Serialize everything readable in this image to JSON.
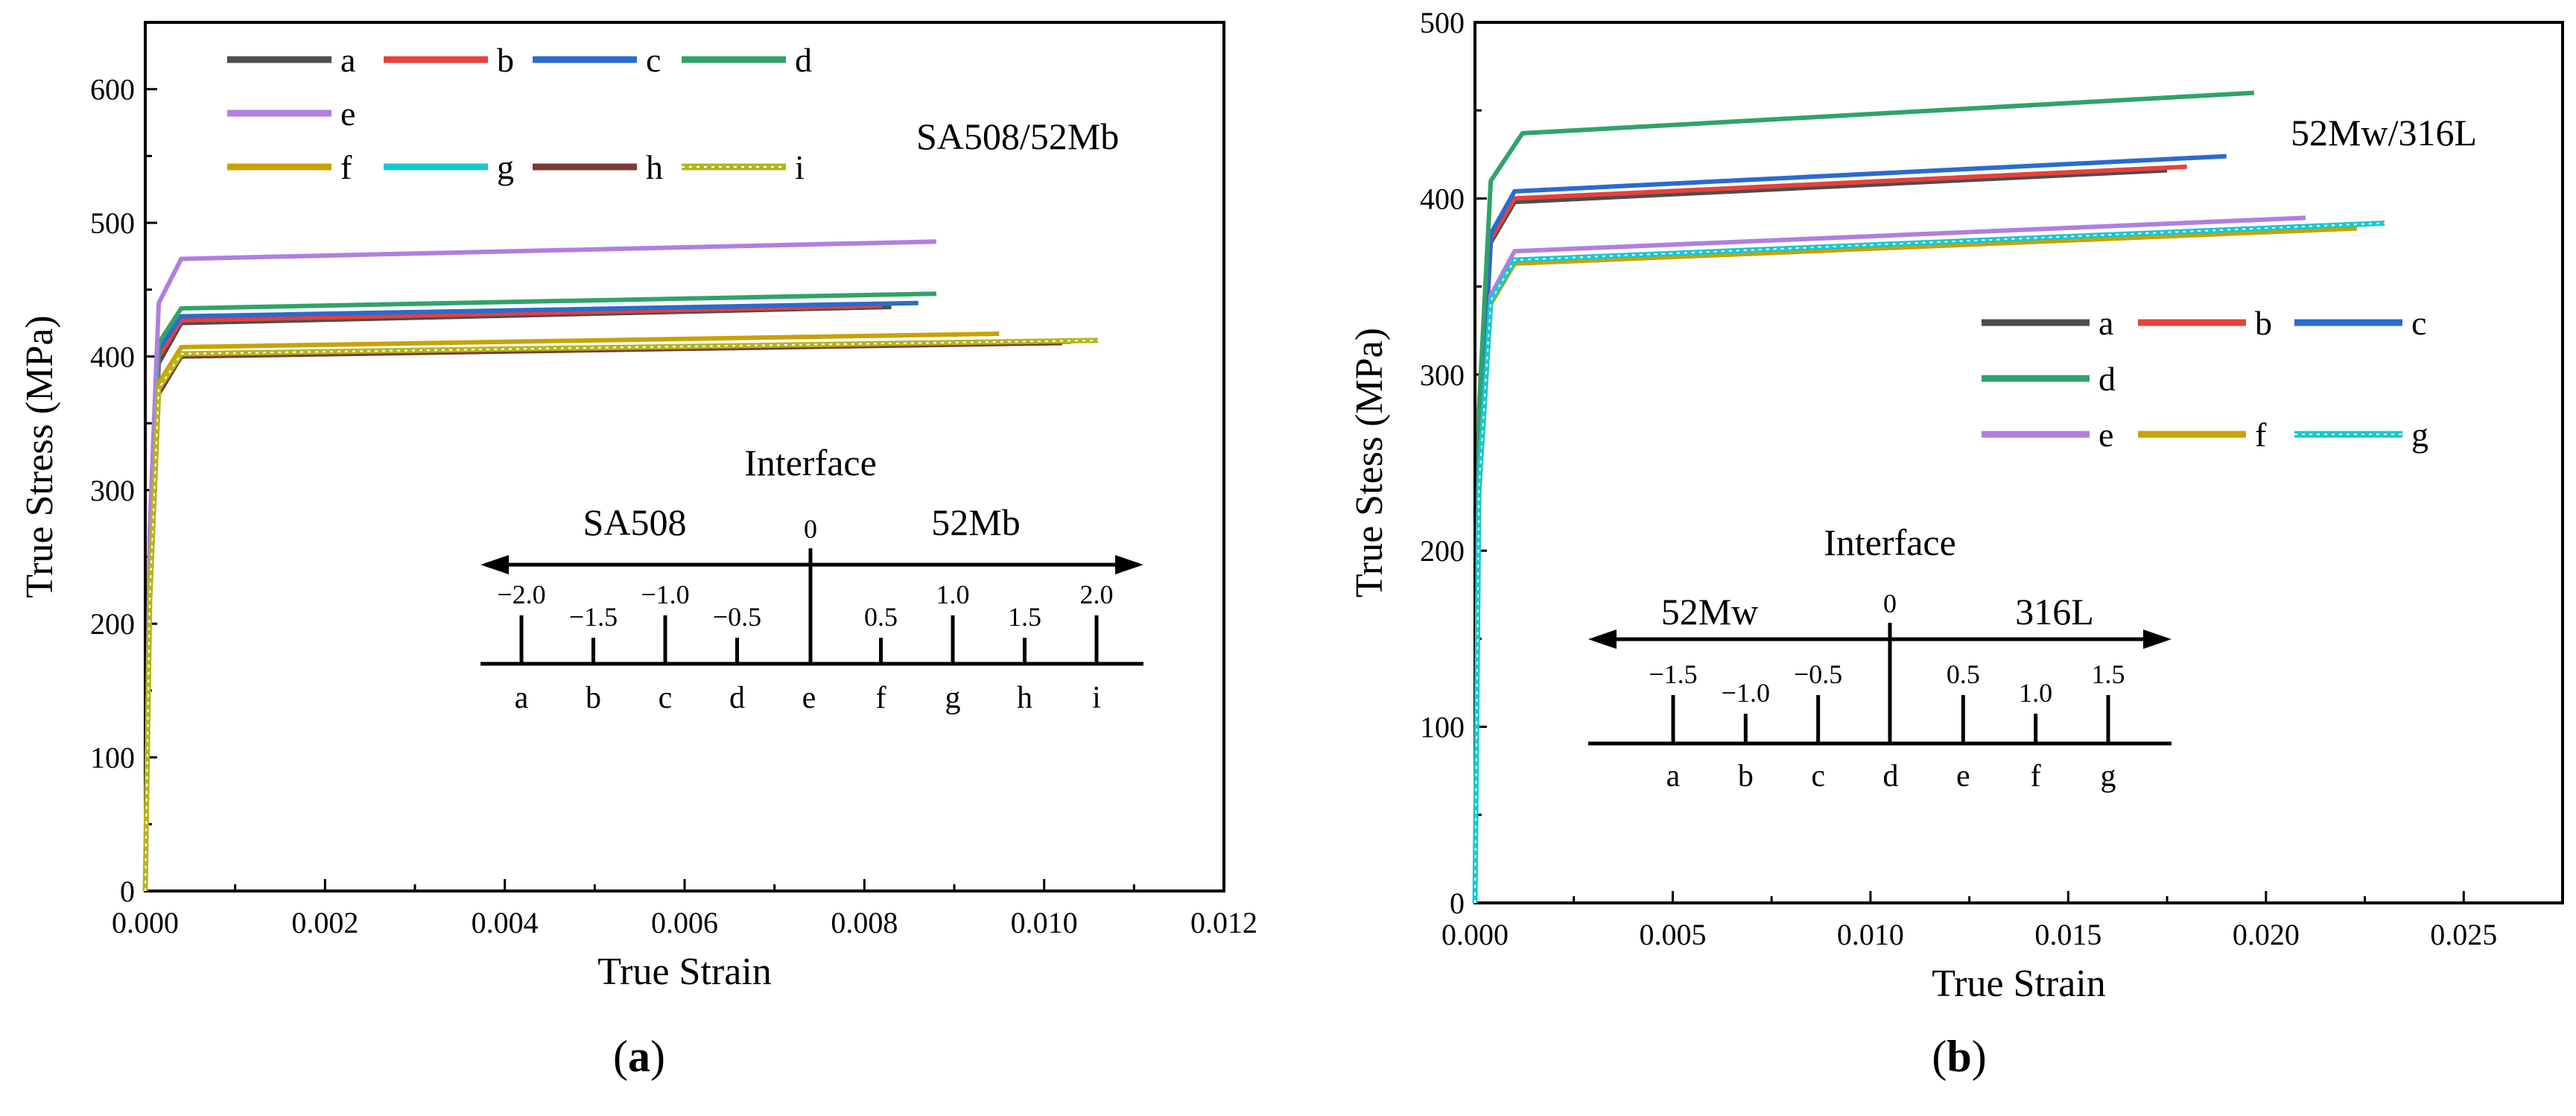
{
  "colors": {
    "a": "#4d4d4d",
    "b": "#e8403c",
    "c": "#2a6bcf",
    "d": "#2fa36b",
    "e": "#b07fdf",
    "f": "#c9a200",
    "g": "#19c8cf",
    "h": "#7a3b36",
    "i": "#b5b51c"
  },
  "chart_data": [
    {
      "type": "line",
      "panel_label": "a",
      "material_label": "SA508/52Mb",
      "xlabel": "True Strain",
      "ylabel": "True Stress (MPa)",
      "xlim": [
        0,
        0.012
      ],
      "ylim": [
        0,
        650
      ],
      "xticks": [
        0,
        0.002,
        0.004,
        0.006,
        0.008,
        0.01,
        0.012
      ],
      "xtick_labels": [
        "0.000",
        "0.002",
        "0.004",
        "0.006",
        "0.008",
        "0.010",
        "0.012"
      ],
      "yticks": [
        0,
        100,
        200,
        300,
        400,
        500,
        600
      ],
      "ytick_labels": [
        "0",
        "100",
        "200",
        "300",
        "400",
        "500",
        "600"
      ],
      "legend_rows": [
        [
          "a",
          "b",
          "c",
          "d"
        ],
        [
          "e"
        ],
        [
          "f",
          "g",
          "h",
          "i"
        ]
      ],
      "series": [
        {
          "name": "a",
          "style": "solid",
          "points": [
            [
              0,
              0
            ],
            [
              5e-05,
              230
            ],
            [
              0.00015,
              395
            ],
            [
              0.0004,
              425
            ],
            [
              0.0083,
              437
            ]
          ]
        },
        {
          "name": "b",
          "style": "solid",
          "points": [
            [
              0,
              0
            ],
            [
              5e-05,
              235
            ],
            [
              0.00015,
              400
            ],
            [
              0.0004,
              427
            ],
            [
              0.0082,
              438
            ]
          ]
        },
        {
          "name": "c",
          "style": "solid",
          "points": [
            [
              0,
              0
            ],
            [
              5e-05,
              240
            ],
            [
              0.00015,
              405
            ],
            [
              0.0004,
              430
            ],
            [
              0.0086,
              440
            ]
          ]
        },
        {
          "name": "d",
          "style": "solid",
          "points": [
            [
              0,
              0
            ],
            [
              5e-05,
              245
            ],
            [
              0.00015,
              410
            ],
            [
              0.0004,
              436
            ],
            [
              0.0088,
              447
            ]
          ]
        },
        {
          "name": "e",
          "style": "solid",
          "points": [
            [
              0,
              0
            ],
            [
              5e-05,
              270
            ],
            [
              0.00015,
              440
            ],
            [
              0.0004,
              473
            ],
            [
              0.0088,
              486
            ]
          ]
        },
        {
          "name": "f",
          "style": "solid",
          "points": [
            [
              0,
              0
            ],
            [
              5e-05,
              220
            ],
            [
              0.00015,
              380
            ],
            [
              0.0004,
              407
            ],
            [
              0.0095,
              417
            ]
          ]
        },
        {
          "name": "g",
          "style": "solid",
          "points": [
            [
              0,
              0
            ],
            [
              5e-05,
              215
            ],
            [
              0.00015,
              375
            ],
            [
              0.0004,
              402
            ],
            [
              0.0103,
              411
            ]
          ]
        },
        {
          "name": "h",
          "style": "solid",
          "points": [
            [
              0,
              0
            ],
            [
              5e-05,
              215
            ],
            [
              0.00015,
              372
            ],
            [
              0.0004,
              400
            ],
            [
              0.0102,
              410
            ]
          ]
        },
        {
          "name": "i",
          "style": "dotted",
          "points": [
            [
              0,
              0
            ],
            [
              5e-05,
              218
            ],
            [
              0.00015,
              376
            ],
            [
              0.0004,
              402
            ],
            [
              0.0106,
              412
            ]
          ]
        }
      ],
      "inset": {
        "title": "Interface",
        "left_material": "SA508",
        "right_material": "52Mb",
        "zero_label": "0",
        "positions": [
          {
            "letter": "a",
            "value": "−2.0"
          },
          {
            "letter": "b",
            "value": "−1.5"
          },
          {
            "letter": "c",
            "value": "−1.0"
          },
          {
            "letter": "d",
            "value": "−0.5"
          },
          {
            "letter": "e",
            "value": ""
          },
          {
            "letter": "f",
            "value": "0.5"
          },
          {
            "letter": "g",
            "value": "1.0"
          },
          {
            "letter": "h",
            "value": "1.5"
          },
          {
            "letter": "i",
            "value": "2.0"
          }
        ]
      }
    },
    {
      "type": "line",
      "panel_label": "b",
      "material_label": "52Mw/316L",
      "xlabel": "True Strain",
      "ylabel": "True Stess (MPa)",
      "xlim": [
        0,
        0.0275
      ],
      "ylim": [
        0,
        500
      ],
      "xticks": [
        0,
        0.005,
        0.01,
        0.015,
        0.02,
        0.025
      ],
      "xtick_labels": [
        "0.000",
        "0.005",
        "0.010",
        "0.015",
        "0.020",
        "0.025"
      ],
      "yticks": [
        0,
        100,
        200,
        300,
        400,
        500
      ],
      "ytick_labels": [
        "0",
        "100",
        "200",
        "300",
        "400",
        "500"
      ],
      "legend_rows": [
        [
          "a",
          "b",
          "c"
        ],
        [
          "d"
        ],
        [
          "e",
          "f",
          "g"
        ]
      ],
      "series": [
        {
          "name": "a",
          "style": "solid",
          "points": [
            [
              0,
              0
            ],
            [
              0.0001,
              250
            ],
            [
              0.0004,
              375
            ],
            [
              0.001,
              398
            ],
            [
              0.0175,
              416
            ]
          ]
        },
        {
          "name": "b",
          "style": "solid",
          "points": [
            [
              0,
              0
            ],
            [
              0.0001,
              252
            ],
            [
              0.0004,
              377
            ],
            [
              0.001,
              400
            ],
            [
              0.018,
              418
            ]
          ]
        },
        {
          "name": "c",
          "style": "solid",
          "points": [
            [
              0,
              0
            ],
            [
              0.0001,
              255
            ],
            [
              0.0004,
              380
            ],
            [
              0.001,
              404
            ],
            [
              0.019,
              424
            ]
          ]
        },
        {
          "name": "d",
          "style": "solid",
          "points": [
            [
              0,
              0
            ],
            [
              0.0001,
              280
            ],
            [
              0.0004,
              410
            ],
            [
              0.0012,
              437
            ],
            [
              0.0197,
              460
            ]
          ]
        },
        {
          "name": "e",
          "style": "solid",
          "points": [
            [
              0,
              0
            ],
            [
              0.0001,
              240
            ],
            [
              0.0004,
              345
            ],
            [
              0.001,
              370
            ],
            [
              0.021,
              389
            ]
          ]
        },
        {
          "name": "f",
          "style": "solid",
          "points": [
            [
              0,
              0
            ],
            [
              0.0001,
              230
            ],
            [
              0.0004,
              340
            ],
            [
              0.001,
              363
            ],
            [
              0.0223,
              383
            ]
          ]
        },
        {
          "name": "g",
          "style": "dotted",
          "points": [
            [
              0,
              0
            ],
            [
              0.0001,
              235
            ],
            [
              0.0004,
              342
            ],
            [
              0.001,
              365
            ],
            [
              0.023,
              386
            ]
          ]
        }
      ],
      "inset": {
        "title": "Interface",
        "left_material": "52Mw",
        "right_material": "316L",
        "zero_label": "0",
        "positions": [
          {
            "letter": "a",
            "value": "−1.5"
          },
          {
            "letter": "b",
            "value": "−1.0"
          },
          {
            "letter": "c",
            "value": "−0.5"
          },
          {
            "letter": "d",
            "value": ""
          },
          {
            "letter": "e",
            "value": "0.5"
          },
          {
            "letter": "f",
            "value": "1.0"
          },
          {
            "letter": "g",
            "value": "1.5"
          }
        ]
      }
    }
  ]
}
